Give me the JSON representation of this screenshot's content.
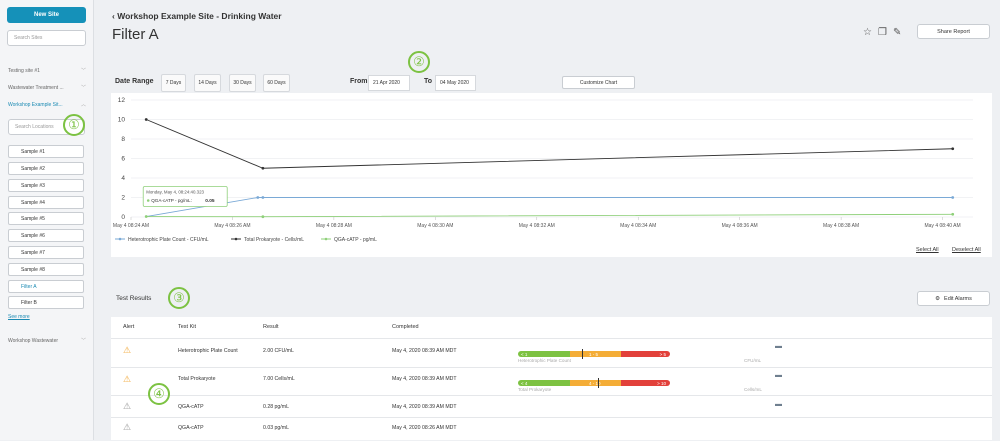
{
  "sidebar": {
    "new_site": "New Site",
    "search_sites": "Search Sites",
    "sites": [
      "Testing site #1",
      "Wastewater Treatment ...",
      "Workshop Example Sit...",
      "Workshop Wastewater"
    ],
    "search_locations": "Search Locations",
    "samples": [
      "Sample #1",
      "Sample #2",
      "Sample #3",
      "Sample #4",
      "Sample #5",
      "Sample #6",
      "Sample #7",
      "Sample #8",
      "Filter A",
      "Filter B"
    ],
    "see_more": "See more"
  },
  "header": {
    "breadcrumb": "Workshop Example Site - Drinking Water",
    "title": "Filter A",
    "share": "Share Report"
  },
  "badges": [
    "①",
    "②",
    "③",
    "④"
  ],
  "controls": {
    "date_range": "Date Range",
    "ranges": [
      "7 Days",
      "14 Days",
      "30 Days",
      "60 Days"
    ],
    "from_label": "From",
    "from_value": "21 Apr 2020",
    "to_label": "To",
    "to_value": "04 May 2020",
    "customize": "Customize Chart"
  },
  "chart_data": {
    "type": "line",
    "y_ticks": [
      "12",
      "10",
      "8",
      "6",
      "4",
      "2",
      "0"
    ],
    "ylim": [
      0,
      12
    ],
    "x_ticks": [
      "May 4 08:24 AM",
      "May 4 08:26 AM",
      "May 4 08:28 AM",
      "May 4 08:30 AM",
      "May 4 08:32 AM",
      "May 4 08:34 AM",
      "May 4 08:36 AM",
      "May 4 08:38 AM",
      "May 4 08:40 AM"
    ],
    "xlim_minutes": [
      24,
      40.6
    ],
    "series": [
      {
        "name": "Heterotrophic Plate Count - CFU/mL",
        "color": "#7aa9d6",
        "points": [
          [
            26.5,
            2
          ],
          [
            26.6,
            2
          ],
          [
            40.2,
            2
          ]
        ],
        "start": [
          26.5,
          2
        ],
        "from": [
          24.3,
          0.05
        ]
      },
      {
        "name": "Total Prokaryote - Cells/mL",
        "color": "#333333",
        "points": [
          [
            24.3,
            10
          ],
          [
            26.6,
            5
          ],
          [
            40.2,
            7
          ]
        ]
      },
      {
        "name": "QGA-cATP - pg/mL",
        "color": "#8fd07a",
        "points": [
          [
            24.3,
            0.05
          ],
          [
            26.6,
            0.03
          ],
          [
            40.2,
            0.28
          ]
        ]
      }
    ],
    "tooltip": {
      "line1": "Monday, May 4, 08:24:40.323",
      "line2": "QGA-cATP - pg/mL:",
      "value": "0.05"
    }
  },
  "select_all": "Select All",
  "deselect_all": "Deselect All",
  "results": {
    "heading": "Test Results",
    "edit_alarms": "Edit Alarms",
    "columns": [
      "Alert",
      "Test Kit",
      "Result",
      "Completed"
    ],
    "rows": [
      {
        "kit": "Heterotrophic Plate Count",
        "result": "2.00 CFU/mL",
        "completed": "May 4, 2020 08:39 AM MDT",
        "gauge": {
          "labels": [
            "< 1",
            "1 - 5",
            "> 5"
          ],
          "name": "Heterotrophic Plate Count",
          "unit": "CFU/mL"
        }
      },
      {
        "kit": "Total Prokaryote",
        "result": "7.00 Cells/mL",
        "completed": "May 4, 2020 08:39 AM MDT",
        "gauge": {
          "labels": [
            "< 4",
            "4 - 10",
            "> 10"
          ],
          "name": "Total Prokaryote",
          "unit": "Cells/mL"
        }
      },
      {
        "kit": "QGA-cATP",
        "result": "0.28 pg/mL",
        "completed": "May 4, 2020 08:39 AM MDT"
      },
      {
        "kit": "QGA-cATP",
        "result": "0.03 pg/mL",
        "completed": "May 4, 2020 08:26 AM MDT"
      }
    ]
  }
}
